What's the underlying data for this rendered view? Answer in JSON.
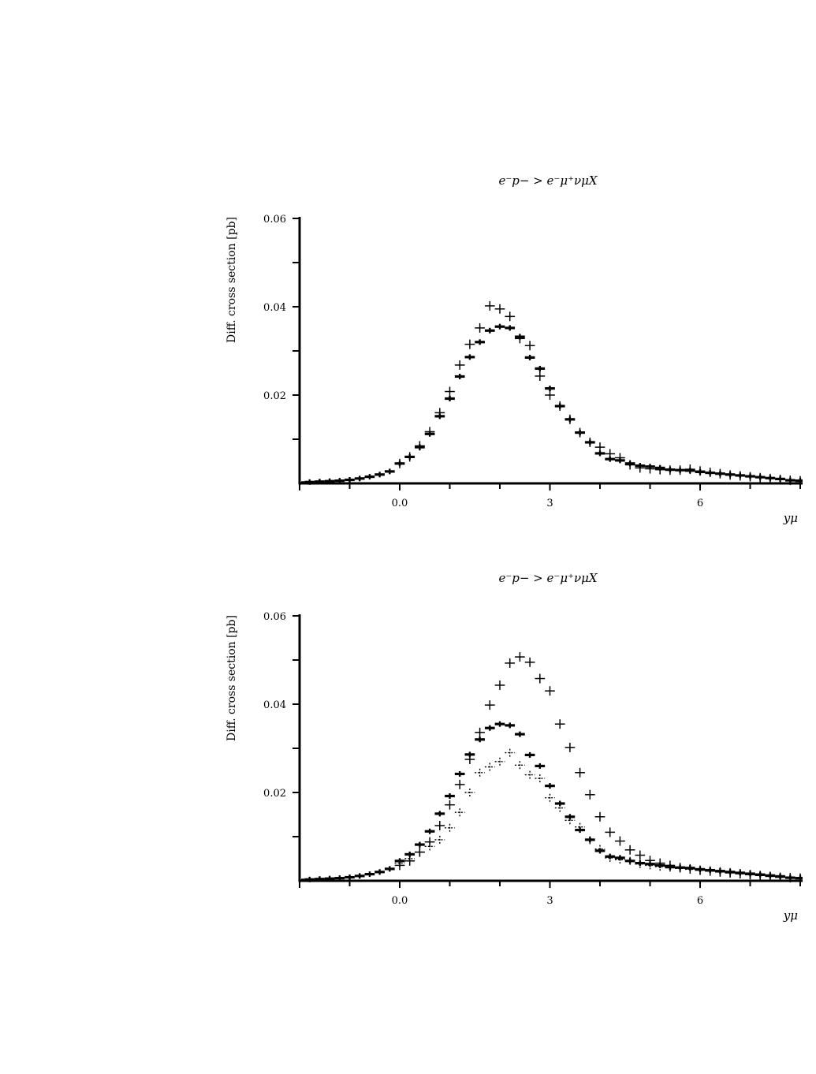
{
  "chart_data": [
    {
      "type": "scatter",
      "title": "e⁻p− > e⁻μ⁺νμX",
      "ylabel": "Diff. cross section [pb]",
      "xlabel": "yμ",
      "xlim": [
        -6,
        9.0
      ],
      "ylim": [
        0,
        0.06
      ],
      "xticks": [
        {
          "v": 0,
          "label": "0.0"
        },
        {
          "v": 3,
          "label": "3"
        },
        {
          "v": 6,
          "label": "6"
        }
      ],
      "yticks": [
        {
          "v": 0.02,
          "label": "0.02"
        },
        {
          "v": 0.04,
          "label": "0.04"
        },
        {
          "v": 0.06,
          "label": "0.06"
        }
      ],
      "bin_width": 0.2,
      "x": [
        -2.0,
        -1.8,
        -1.6,
        -1.4,
        -1.2,
        -1.0,
        -0.8,
        -0.6,
        -0.4,
        -0.2,
        0.0,
        0.2,
        0.4,
        0.6,
        0.8,
        1.0,
        1.2,
        1.4,
        1.6,
        1.8,
        2.0,
        2.2,
        2.4,
        2.6,
        2.8,
        3.0,
        3.2,
        3.4,
        3.6,
        3.8,
        4.0,
        4.2,
        4.4,
        4.6,
        4.8,
        5.0,
        5.2,
        5.4,
        5.6,
        5.8,
        6.0,
        6.2,
        6.4,
        6.6,
        6.8,
        7.0,
        7.2,
        7.4,
        7.6,
        7.8,
        8.0
      ],
      "series": [
        {
          "style": "bold",
          "values": [
            0.0002,
            0.0003,
            0.0004,
            0.0005,
            0.0006,
            0.0008,
            0.0011,
            0.0015,
            0.002,
            0.0027,
            0.0045,
            0.006,
            0.0082,
            0.0112,
            0.0152,
            0.0192,
            0.0242,
            0.0286,
            0.032,
            0.0346,
            0.0355,
            0.0352,
            0.0332,
            0.0285,
            0.026,
            0.0215,
            0.0175,
            0.0145,
            0.0115,
            0.0093,
            0.0068,
            0.0055,
            0.0052,
            0.0045,
            0.004,
            0.0038,
            0.0035,
            0.0031,
            0.003,
            0.0029,
            0.0026,
            0.0024,
            0.0022,
            0.002,
            0.0018,
            0.0016,
            0.0014,
            0.0012,
            0.001,
            0.0007,
            0.0006
          ]
        },
        {
          "style": "cross",
          "values": [
            null,
            null,
            null,
            null,
            null,
            null,
            null,
            null,
            null,
            null,
            0.0045,
            0.006,
            0.0085,
            0.0117,
            0.016,
            0.0208,
            0.0268,
            0.0315,
            0.0352,
            0.0402,
            0.0395,
            0.0378,
            0.0328,
            0.0312,
            0.0243,
            0.02,
            0.0175,
            0.0145,
            0.0115,
            0.0093,
            0.0082,
            0.0067,
            0.0058,
            0.0042,
            0.0035,
            0.0033,
            0.0031,
            0.003,
            0.003,
            0.0032,
            0.0028,
            0.0025,
            0.0022,
            0.0019,
            0.0017,
            0.0015,
            0.0013,
            0.0011,
            0.0009,
            0.0007,
            0.0006
          ]
        }
      ]
    },
    {
      "type": "scatter",
      "title": "e⁻p− > e⁻μ⁺νμX",
      "ylabel": "Diff. cross section [pb]",
      "xlabel": "yμ",
      "xlim": [
        -6,
        9.0
      ],
      "ylim": [
        0,
        0.06
      ],
      "xticks": [
        {
          "v": 0,
          "label": "0.0"
        },
        {
          "v": 3,
          "label": "3"
        },
        {
          "v": 6,
          "label": "6"
        }
      ],
      "yticks": [
        {
          "v": 0.02,
          "label": "0.02"
        },
        {
          "v": 0.04,
          "label": "0.04"
        },
        {
          "v": 0.06,
          "label": "0.06"
        }
      ],
      "bin_width": 0.2,
      "x": [
        -2.0,
        -1.8,
        -1.6,
        -1.4,
        -1.2,
        -1.0,
        -0.8,
        -0.6,
        -0.4,
        -0.2,
        0.0,
        0.2,
        0.4,
        0.6,
        0.8,
        1.0,
        1.2,
        1.4,
        1.6,
        1.8,
        2.0,
        2.2,
        2.4,
        2.6,
        2.8,
        3.0,
        3.2,
        3.4,
        3.6,
        3.8,
        4.0,
        4.2,
        4.4,
        4.6,
        4.8,
        5.0,
        5.2,
        5.4,
        5.6,
        5.8,
        6.0,
        6.2,
        6.4,
        6.6,
        6.8,
        7.0,
        7.2,
        7.4,
        7.6,
        7.8,
        8.0
      ],
      "series": [
        {
          "style": "bold",
          "values": [
            0.0002,
            0.0003,
            0.0004,
            0.0005,
            0.0006,
            0.0008,
            0.0011,
            0.0015,
            0.002,
            0.0027,
            0.0045,
            0.006,
            0.0082,
            0.0112,
            0.0152,
            0.0192,
            0.0242,
            0.0286,
            0.032,
            0.0346,
            0.0355,
            0.0352,
            0.0332,
            0.0285,
            0.026,
            0.0215,
            0.0175,
            0.0145,
            0.0115,
            0.0093,
            0.0068,
            0.0055,
            0.0052,
            0.0045,
            0.004,
            0.0038,
            0.0035,
            0.0031,
            0.003,
            0.0029,
            0.0026,
            0.0024,
            0.0022,
            0.002,
            0.0018,
            0.0016,
            0.0014,
            0.0012,
            0.001,
            0.0007,
            0.0006
          ]
        },
        {
          "style": "cross",
          "values": [
            null,
            null,
            null,
            null,
            null,
            null,
            null,
            null,
            null,
            null,
            0.0035,
            0.0045,
            0.0065,
            0.0088,
            0.0125,
            0.0172,
            0.0218,
            0.0275,
            0.0336,
            0.0398,
            0.0443,
            0.0493,
            0.0507,
            0.0495,
            0.0458,
            0.043,
            0.0355,
            0.0302,
            0.0245,
            0.0195,
            0.0145,
            0.011,
            0.009,
            0.007,
            0.0058,
            0.0046,
            0.004,
            0.0035,
            0.003,
            0.0027,
            0.0024,
            0.0022,
            0.002,
            0.0018,
            0.0016,
            0.0014,
            0.0012,
            0.001,
            0.0008,
            0.0007,
            0.0006
          ]
        },
        {
          "style": "dotted",
          "values": [
            null,
            null,
            null,
            null,
            null,
            null,
            null,
            null,
            null,
            null,
            0.004,
            0.005,
            0.0065,
            0.0078,
            0.0093,
            0.012,
            0.0155,
            0.02,
            0.0245,
            0.0258,
            0.027,
            0.029,
            0.0262,
            0.024,
            0.0232,
            0.0188,
            0.0165,
            0.0137,
            0.0122,
            0.0092,
            0.0072,
            0.0052,
            0.0048,
            0.0045,
            0.0038,
            0.0035,
            0.0032,
            0.003,
            0.0028,
            0.0026,
            0.0024,
            0.0022,
            0.002,
            0.0018,
            0.0016,
            0.0014,
            0.0012,
            0.001,
            0.0008,
            0.0007,
            0.0006
          ]
        }
      ]
    }
  ]
}
